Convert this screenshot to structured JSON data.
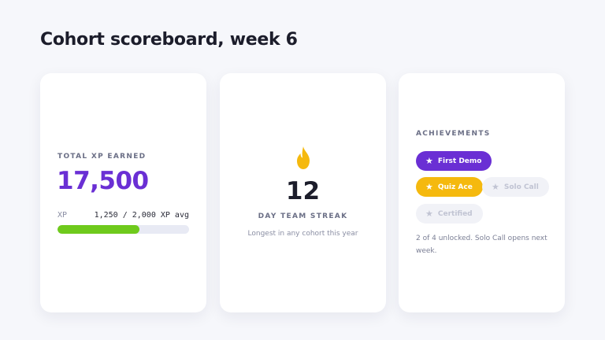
{
  "page": {
    "title": "Cohort scoreboard, week 6"
  },
  "xp_card": {
    "label": "TOTAL XP EARNED",
    "value": "17,500",
    "row_label": "XP",
    "row_value": "1,250 / 2,000 XP avg",
    "progress": 0.625,
    "progress_color": "#6fca1c"
  },
  "streak_card": {
    "icon": "flame-icon",
    "value": "12",
    "label": "DAY TEAM STREAK",
    "caption": "Longest in any cohort this year"
  },
  "achievements_card": {
    "title": "ACHIEVEMENTS",
    "badges": [
      {
        "label": "First Demo",
        "state": "unlocked",
        "color": "#6a2fd4"
      },
      {
        "label": "Quiz Ace",
        "state": "unlocked",
        "color": "#f5b90e"
      },
      {
        "label": "Solo Call",
        "state": "locked"
      },
      {
        "label": "Certified",
        "state": "locked"
      }
    ],
    "caption": "2 of 4 unlocked. Solo Call opens next week."
  }
}
